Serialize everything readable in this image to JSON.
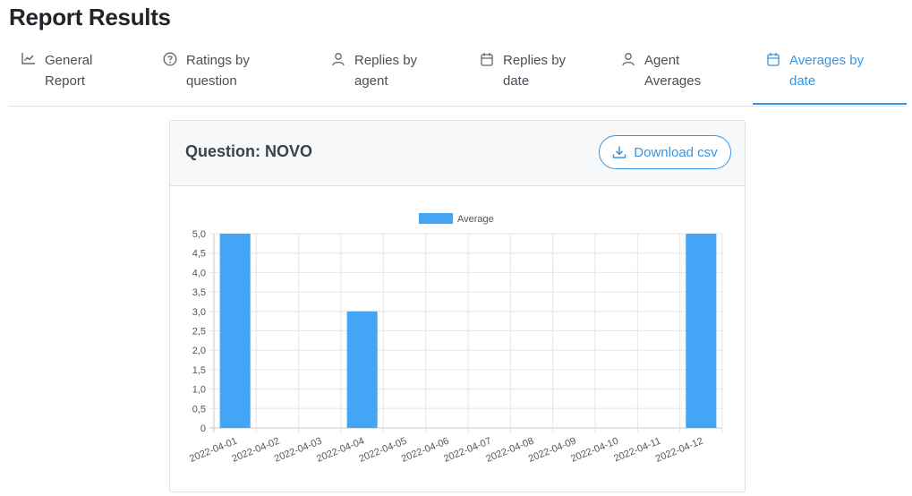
{
  "page": {
    "title": "Report Results"
  },
  "tabs": [
    {
      "line1": "General",
      "line2": "Report",
      "icon": "chart-line-icon",
      "active": false
    },
    {
      "line1": "Ratings by",
      "line2": "question",
      "icon": "question-circle-icon",
      "active": false
    },
    {
      "line1": "Replies by",
      "line2": "agent",
      "icon": "user-icon",
      "active": false
    },
    {
      "line1": "Replies by",
      "line2": "date",
      "icon": "calendar-icon",
      "active": false
    },
    {
      "line1": "Agent",
      "line2": "Averages",
      "icon": "user-icon",
      "active": false
    },
    {
      "line1": "Averages by",
      "line2": "date",
      "icon": "calendar-icon",
      "active": true
    }
  ],
  "card": {
    "title": "Question: NOVO",
    "download_label": "Download csv"
  },
  "colors": {
    "accent": "#3b95e0",
    "bar": "#42a5f5"
  },
  "chart_data": {
    "type": "bar",
    "categories": [
      "2022-04-01",
      "2022-04-02",
      "2022-04-03",
      "2022-04-04",
      "2022-04-05",
      "2022-04-06",
      "2022-04-07",
      "2022-04-08",
      "2022-04-09",
      "2022-04-10",
      "2022-04-11",
      "2022-04-12"
    ],
    "series": [
      {
        "name": "Average",
        "values": [
          5,
          0,
          0,
          3,
          0,
          0,
          0,
          0,
          0,
          0,
          0,
          5
        ]
      }
    ],
    "ylim": [
      0,
      5
    ],
    "yticks": [
      "0",
      "0,5",
      "1,0",
      "1,5",
      "2,0",
      "2,5",
      "3,0",
      "3,5",
      "4,0",
      "4,5",
      "5,0"
    ],
    "legend": "top",
    "grid": true
  }
}
